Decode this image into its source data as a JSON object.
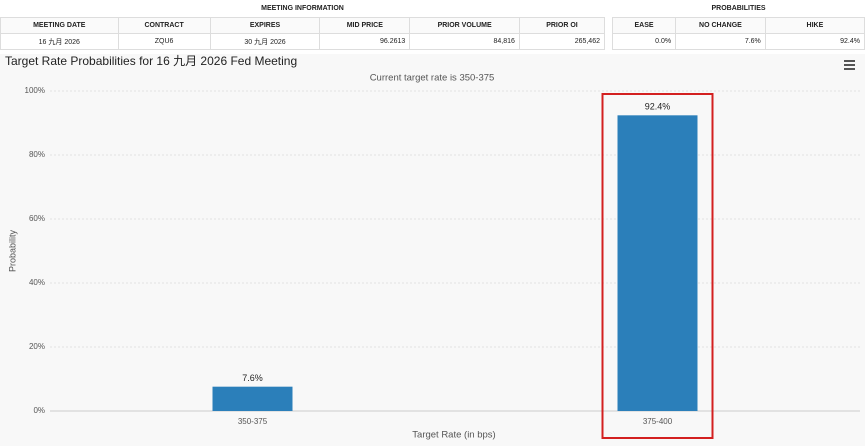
{
  "meeting_info": {
    "title": "MEETING INFORMATION",
    "headers": [
      "MEETING DATE",
      "CONTRACT",
      "EXPIRES",
      "MID PRICE",
      "PRIOR VOLUME",
      "PRIOR OI"
    ],
    "row": [
      "16 九月 2026",
      "ZQU6",
      "30 九月 2026",
      "96.2613",
      "84,816",
      "265,462"
    ]
  },
  "probabilities": {
    "title": "PROBABILITIES",
    "headers": [
      "EASE",
      "NO CHANGE",
      "HIKE"
    ],
    "row": [
      "0.0%",
      "7.6%",
      "92.4%"
    ]
  },
  "chart_data": {
    "type": "bar",
    "title": "Target Rate Probabilities for 16 九月 2026 Fed Meeting",
    "subtitle": "Current target rate is 350-375",
    "x_label": "Target Rate (in bps)",
    "y_label": "Probability",
    "categories": [
      "350-375",
      "375-400"
    ],
    "values": [
      7.6,
      92.4
    ],
    "value_labels": [
      "7.6%",
      "92.4%"
    ],
    "color": "#2b7fba",
    "ylim": [
      0,
      100
    ],
    "yticks": [
      {
        "value": 0,
        "label": "0%"
      },
      {
        "value": 20,
        "label": "20%"
      },
      {
        "value": 40,
        "label": "40%"
      },
      {
        "value": 60,
        "label": "60%"
      },
      {
        "value": 80,
        "label": "80%"
      },
      {
        "value": 100,
        "label": "100%"
      }
    ],
    "grid": true
  }
}
